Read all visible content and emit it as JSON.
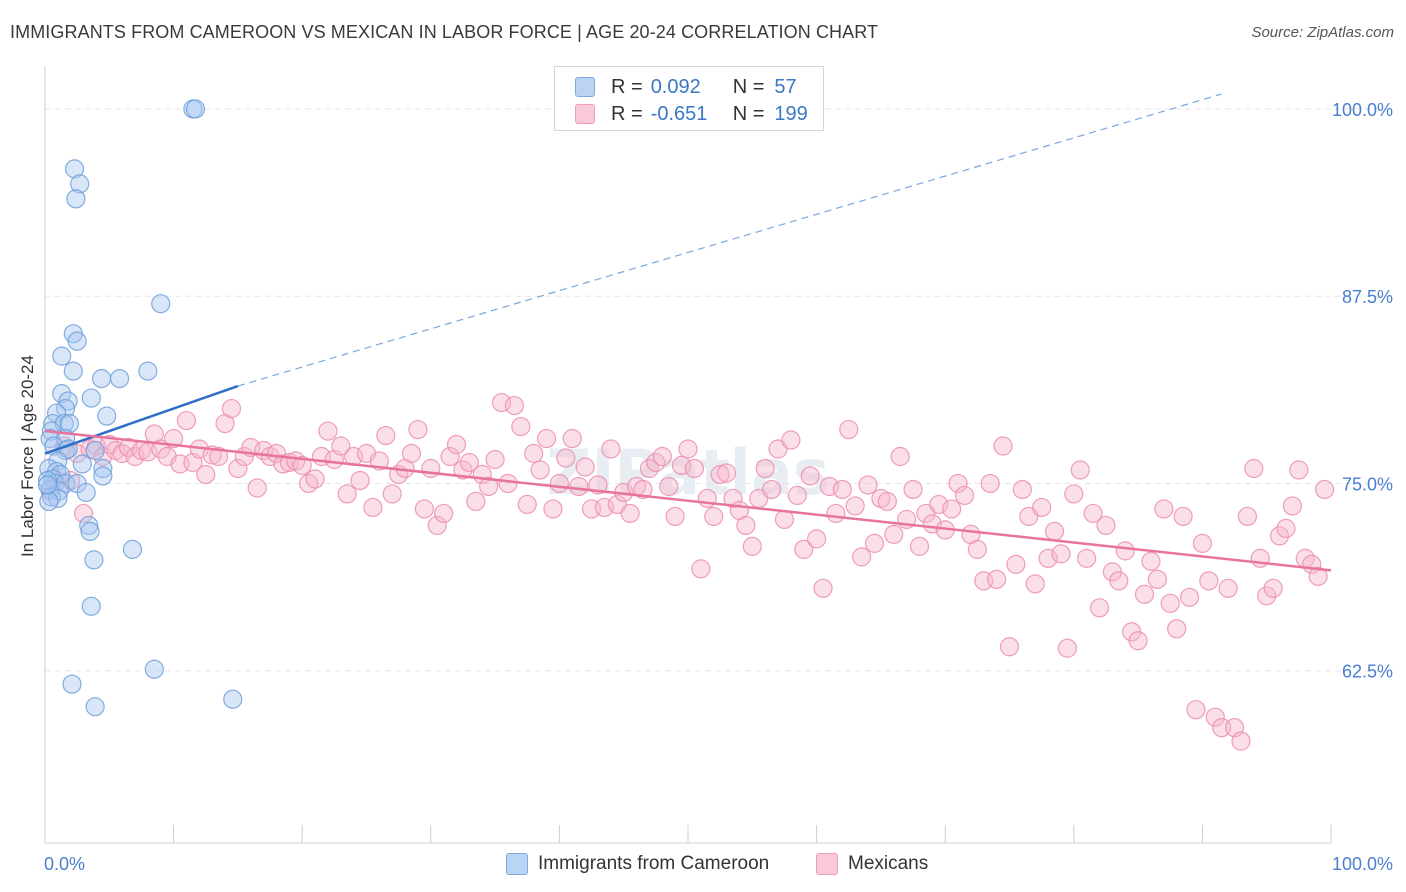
{
  "header": {
    "title": "IMMIGRANTS FROM CAMEROON VS MEXICAN IN LABOR FORCE | AGE 20-24 CORRELATION CHART",
    "source": "Source: ZipAtlas.com"
  },
  "legend": {
    "rows": [
      {
        "r_label": "R =",
        "r_value": "0.092",
        "n_label": "N =",
        "n_value": "57"
      },
      {
        "r_label": "R =",
        "r_value": "-0.651",
        "n_label": "N =",
        "n_value": "199"
      }
    ],
    "bottom": [
      "Immigrants from Cameroon",
      "Mexicans"
    ]
  },
  "watermark": "ZIPatlas",
  "colors": {
    "blue_fill": "#a9c8ef",
    "blue_stroke": "#6f9fdb",
    "blue_line": "#2f6fc7",
    "pink_fill": "#f6b8cb",
    "pink_stroke": "#ec8db0",
    "pink_line": "#e8749c",
    "tick_label": "#4a7fd0",
    "grid": "#e6e6e6"
  },
  "chart_data": {
    "type": "scatter",
    "title": "IMMIGRANTS FROM CAMEROON VS MEXICAN IN LABOR FORCE | AGE 20-24 CORRELATION CHART",
    "xlabel": "",
    "ylabel": "In Labor Force | Age 20-24",
    "xlim": [
      0,
      100
    ],
    "ylim": [
      51,
      102
    ],
    "x_tick_labels": [
      "0.0%",
      "100.0%"
    ],
    "y_ticks": [
      62.5,
      75.0,
      87.5,
      100.0
    ],
    "y_tick_labels": [
      "62.5%",
      "75.0%",
      "87.5%",
      "100.0%"
    ],
    "grid": true,
    "legend_position": "top-center",
    "series": [
      {
        "name": "Immigrants from Cameroon",
        "color": "#a9c8ef",
        "points": [
          [
            11.5,
            100
          ],
          [
            11.7,
            100
          ],
          [
            2.3,
            96
          ],
          [
            2.7,
            95
          ],
          [
            2.4,
            94
          ],
          [
            9.0,
            87
          ],
          [
            2.2,
            85
          ],
          [
            2.5,
            84.5
          ],
          [
            1.3,
            83.5
          ],
          [
            2.2,
            82.5
          ],
          [
            4.4,
            82
          ],
          [
            5.8,
            82
          ],
          [
            8.0,
            82.5
          ],
          [
            1.3,
            81
          ],
          [
            1.8,
            80.5
          ],
          [
            3.6,
            80.7
          ],
          [
            1.6,
            80
          ],
          [
            0.9,
            79.7
          ],
          [
            4.8,
            79.5
          ],
          [
            0.6,
            79
          ],
          [
            1.5,
            79
          ],
          [
            1.9,
            79
          ],
          [
            0.5,
            78.5
          ],
          [
            0.4,
            78
          ],
          [
            1.6,
            78
          ],
          [
            0.7,
            77.5
          ],
          [
            1.6,
            77.2
          ],
          [
            1.8,
            77.3
          ],
          [
            3.9,
            77.2
          ],
          [
            1.0,
            76.5
          ],
          [
            2.9,
            76.3
          ],
          [
            4.5,
            76
          ],
          [
            0.3,
            76
          ],
          [
            0.9,
            75.8
          ],
          [
            1.2,
            75.6
          ],
          [
            0.6,
            75.3
          ],
          [
            0.8,
            75
          ],
          [
            1.6,
            75
          ],
          [
            2.5,
            75
          ],
          [
            4.5,
            75.5
          ],
          [
            0.4,
            74.6
          ],
          [
            1.1,
            74.5
          ],
          [
            3.2,
            74.4
          ],
          [
            0.5,
            74.1
          ],
          [
            1.0,
            74.0
          ],
          [
            0.3,
            73.8
          ],
          [
            3.4,
            72.2
          ],
          [
            3.5,
            71.8
          ],
          [
            6.8,
            70.6
          ],
          [
            3.8,
            69.9
          ],
          [
            3.6,
            66.8
          ],
          [
            8.5,
            62.6
          ],
          [
            2.1,
            61.6
          ],
          [
            14.6,
            60.6
          ],
          [
            3.9,
            60.1
          ],
          [
            0.2,
            75.2
          ],
          [
            0.2,
            74.9
          ]
        ]
      },
      {
        "name": "Mexicans",
        "color": "#f6b8cb",
        "points": [
          [
            0.4,
            74.5
          ],
          [
            1.0,
            75.2
          ],
          [
            1.5,
            77.5
          ],
          [
            2.0,
            75.2
          ],
          [
            2.5,
            77.0
          ],
          [
            3.0,
            73.0
          ],
          [
            3.5,
            77.3
          ],
          [
            4.0,
            77.5
          ],
          [
            4.5,
            76.8
          ],
          [
            5.0,
            77.6
          ],
          [
            5.5,
            77.2
          ],
          [
            6.0,
            77.0
          ],
          [
            6.5,
            77.4
          ],
          [
            7.0,
            76.8
          ],
          [
            7.5,
            77.2
          ],
          [
            8.0,
            77.1
          ],
          [
            8.5,
            78.3
          ],
          [
            9.0,
            77.3
          ],
          [
            9.5,
            76.8
          ],
          [
            10.0,
            78.0
          ],
          [
            10.5,
            76.3
          ],
          [
            11.0,
            79.2
          ],
          [
            11.5,
            76.4
          ],
          [
            12.0,
            77.3
          ],
          [
            12.5,
            75.6
          ],
          [
            13.0,
            76.9
          ],
          [
            13.5,
            76.8
          ],
          [
            14.0,
            79.0
          ],
          [
            14.5,
            80.0
          ],
          [
            15.0,
            76.0
          ],
          [
            15.5,
            76.8
          ],
          [
            16.0,
            77.4
          ],
          [
            16.5,
            74.7
          ],
          [
            17.0,
            77.2
          ],
          [
            17.5,
            76.8
          ],
          [
            18.0,
            77.0
          ],
          [
            18.5,
            76.3
          ],
          [
            19.0,
            76.4
          ],
          [
            19.5,
            76.5
          ],
          [
            20.0,
            76.2
          ],
          [
            20.5,
            75.0
          ],
          [
            21.0,
            75.3
          ],
          [
            21.5,
            76.8
          ],
          [
            22.0,
            78.5
          ],
          [
            22.5,
            76.6
          ],
          [
            23.0,
            77.5
          ],
          [
            23.5,
            74.3
          ],
          [
            24.0,
            76.8
          ],
          [
            24.5,
            75.2
          ],
          [
            25.0,
            77.0
          ],
          [
            25.5,
            73.4
          ],
          [
            26.0,
            76.5
          ],
          [
            26.5,
            78.2
          ],
          [
            27.0,
            74.3
          ],
          [
            27.5,
            75.6
          ],
          [
            28.0,
            76.0
          ],
          [
            28.5,
            77.0
          ],
          [
            29.0,
            78.6
          ],
          [
            29.5,
            73.3
          ],
          [
            30.0,
            76.0
          ],
          [
            30.5,
            72.2
          ],
          [
            31.0,
            73.0
          ],
          [
            31.5,
            76.8
          ],
          [
            32.0,
            77.6
          ],
          [
            32.5,
            75.9
          ],
          [
            33.0,
            76.4
          ],
          [
            33.5,
            73.8
          ],
          [
            34.0,
            75.6
          ],
          [
            34.5,
            74.8
          ],
          [
            35.0,
            76.6
          ],
          [
            35.5,
            80.4
          ],
          [
            36.0,
            75.0
          ],
          [
            36.5,
            80.2
          ],
          [
            37.0,
            78.8
          ],
          [
            37.5,
            73.6
          ],
          [
            38.0,
            77.0
          ],
          [
            38.5,
            75.9
          ],
          [
            39.0,
            78.0
          ],
          [
            39.5,
            73.3
          ],
          [
            40.0,
            75.0
          ],
          [
            40.5,
            76.7
          ],
          [
            41.0,
            78.0
          ],
          [
            41.5,
            74.8
          ],
          [
            42.0,
            76.1
          ],
          [
            42.5,
            73.3
          ],
          [
            43.0,
            74.9
          ],
          [
            43.5,
            73.4
          ],
          [
            44.0,
            77.3
          ],
          [
            44.5,
            73.6
          ],
          [
            45.0,
            74.4
          ],
          [
            45.5,
            73.0
          ],
          [
            46.0,
            74.8
          ],
          [
            46.5,
            74.6
          ],
          [
            47.0,
            76.0
          ],
          [
            47.5,
            76.4
          ],
          [
            48.0,
            76.8
          ],
          [
            48.5,
            74.8
          ],
          [
            49.0,
            72.8
          ],
          [
            49.5,
            76.2
          ],
          [
            50.0,
            77.3
          ],
          [
            50.5,
            76.0
          ],
          [
            51.0,
            69.3
          ],
          [
            51.5,
            74.0
          ],
          [
            52.0,
            72.8
          ],
          [
            52.5,
            75.6
          ],
          [
            53.0,
            75.7
          ],
          [
            53.5,
            74.0
          ],
          [
            54.0,
            73.2
          ],
          [
            54.5,
            72.2
          ],
          [
            55.0,
            70.8
          ],
          [
            55.5,
            74.0
          ],
          [
            56.0,
            76.0
          ],
          [
            56.5,
            74.6
          ],
          [
            57.0,
            77.3
          ],
          [
            57.5,
            72.6
          ],
          [
            58.0,
            77.9
          ],
          [
            58.5,
            74.2
          ],
          [
            59.0,
            70.6
          ],
          [
            59.5,
            75.5
          ],
          [
            60.0,
            71.3
          ],
          [
            60.5,
            68.0
          ],
          [
            61.0,
            74.8
          ],
          [
            61.5,
            73.0
          ],
          [
            62.0,
            74.6
          ],
          [
            62.5,
            78.6
          ],
          [
            63.0,
            73.5
          ],
          [
            63.5,
            70.1
          ],
          [
            64.0,
            74.9
          ],
          [
            64.5,
            71.0
          ],
          [
            65.0,
            74.0
          ],
          [
            65.5,
            73.8
          ],
          [
            66.0,
            71.6
          ],
          [
            66.5,
            76.8
          ],
          [
            67.0,
            72.6
          ],
          [
            67.5,
            74.6
          ],
          [
            68.0,
            70.8
          ],
          [
            68.5,
            73.0
          ],
          [
            69.0,
            72.3
          ],
          [
            69.5,
            73.6
          ],
          [
            70.0,
            71.9
          ],
          [
            70.5,
            73.3
          ],
          [
            71.0,
            75.0
          ],
          [
            71.5,
            74.2
          ],
          [
            72.0,
            71.6
          ],
          [
            72.5,
            70.6
          ],
          [
            73.0,
            68.5
          ],
          [
            73.5,
            75.0
          ],
          [
            74.0,
            68.6
          ],
          [
            74.5,
            77.5
          ],
          [
            75.0,
            64.1
          ],
          [
            75.5,
            69.6
          ],
          [
            76.0,
            74.6
          ],
          [
            76.5,
            72.8
          ],
          [
            77.0,
            68.3
          ],
          [
            77.5,
            73.4
          ],
          [
            78.0,
            70.0
          ],
          [
            78.5,
            71.8
          ],
          [
            79.0,
            70.3
          ],
          [
            79.5,
            64.0
          ],
          [
            80.0,
            74.3
          ],
          [
            80.5,
            75.9
          ],
          [
            81.0,
            70.0
          ],
          [
            81.5,
            73.0
          ],
          [
            82.0,
            66.7
          ],
          [
            82.5,
            72.2
          ],
          [
            83.0,
            69.1
          ],
          [
            83.5,
            68.5
          ],
          [
            84.0,
            70.5
          ],
          [
            84.5,
            65.1
          ],
          [
            85.0,
            64.5
          ],
          [
            85.5,
            67.6
          ],
          [
            86.0,
            69.8
          ],
          [
            86.5,
            68.6
          ],
          [
            87.0,
            73.3
          ],
          [
            87.5,
            67.0
          ],
          [
            88.0,
            65.3
          ],
          [
            88.5,
            72.8
          ],
          [
            89.0,
            67.4
          ],
          [
            89.5,
            59.9
          ],
          [
            90.0,
            71.0
          ],
          [
            90.5,
            68.5
          ],
          [
            91.0,
            59.4
          ],
          [
            91.5,
            58.7
          ],
          [
            92.0,
            68.0
          ],
          [
            92.5,
            58.7
          ],
          [
            93.0,
            57.8
          ],
          [
            93.5,
            72.8
          ],
          [
            94.0,
            76.0
          ],
          [
            94.5,
            70.0
          ],
          [
            95.0,
            67.5
          ],
          [
            95.5,
            68.0
          ],
          [
            96.0,
            71.5
          ],
          [
            96.5,
            72.0
          ],
          [
            97.0,
            73.5
          ],
          [
            97.5,
            75.9
          ],
          [
            98.0,
            70.0
          ],
          [
            98.5,
            69.6
          ],
          [
            99.0,
            68.8
          ],
          [
            99.5,
            74.6
          ]
        ]
      }
    ],
    "trendlines": [
      {
        "series": "Immigrants from Cameroon",
        "solid": [
          [
            0.0,
            77.0
          ],
          [
            15.0,
            81.5
          ]
        ],
        "dashed": [
          [
            15.0,
            81.5
          ],
          [
            91.5,
            101.0
          ]
        ]
      },
      {
        "series": "Mexicans",
        "solid": [
          [
            0.0,
            78.5
          ],
          [
            100.0,
            69.2
          ]
        ]
      }
    ]
  }
}
